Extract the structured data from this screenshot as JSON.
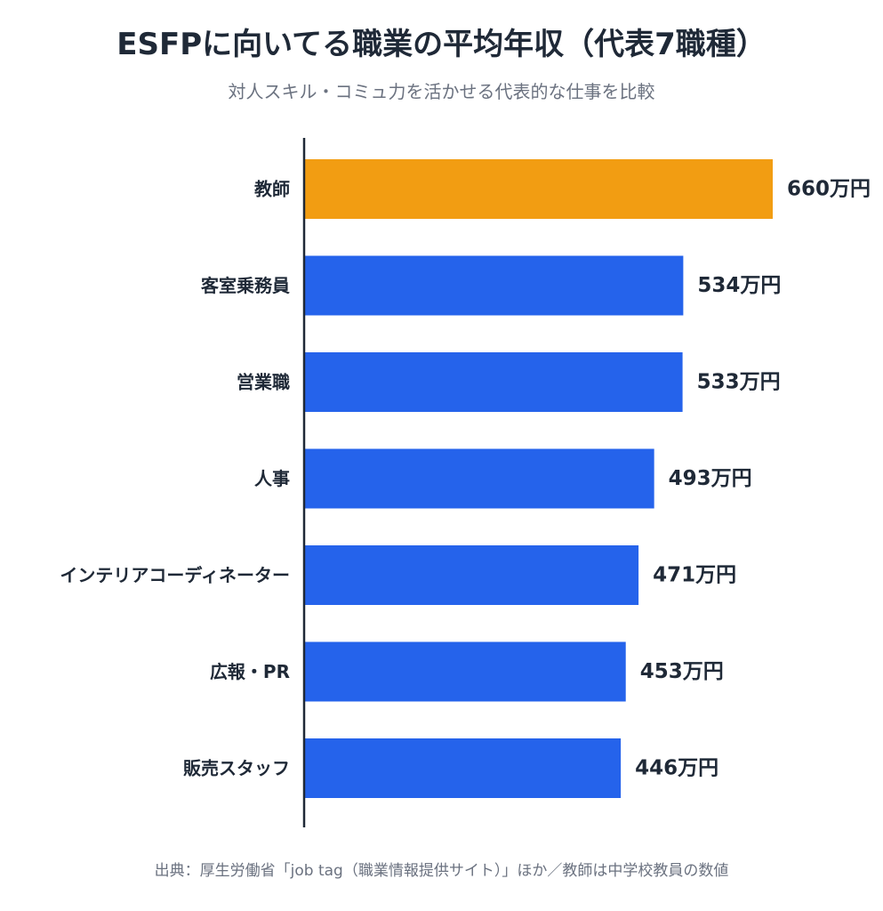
{
  "header": {
    "title": "ESFPに向いてる職業の平均年収（代表7職種）",
    "subtitle": "対人スキル・コミュ力を活かせる代表的な仕事を比較"
  },
  "footer": {
    "source": "出典：厚生労働省「job tag（職業情報提供サイト）」ほか／教師は中学校教員の数値"
  },
  "colors": {
    "highlight": "#f29d12",
    "bar": "#2563eb",
    "axis": "#1f2937",
    "label": "#1f2937"
  },
  "chart_data": {
    "type": "bar",
    "orientation": "horizontal",
    "categories": [
      "教師",
      "客室乗務員",
      "営業職",
      "人事",
      "インテリアコーディネーター",
      "広報・PR",
      "販売スタッフ"
    ],
    "values": [
      660,
      534,
      533,
      493,
      471,
      453,
      446
    ],
    "value_labels": [
      "660万円",
      "534万円",
      "533万円",
      "493万円",
      "471万円",
      "453万円",
      "446万円"
    ],
    "unit": "万円",
    "highlight_index": 0,
    "xlim": [
      0,
      660
    ],
    "grid": false,
    "legend": "none"
  }
}
